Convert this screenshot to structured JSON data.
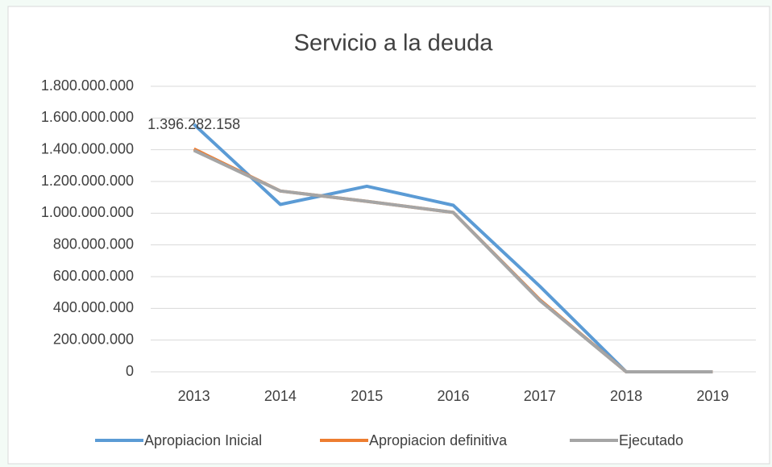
{
  "chart_data": {
    "type": "line",
    "title": "Servicio a la deuda",
    "categories": [
      "2013",
      "2014",
      "2015",
      "2016",
      "2017",
      "2018",
      "2019"
    ],
    "series": [
      {
        "name": "Apropiacion Inicial",
        "color": "#5b9bd5",
        "values": [
          1560000000,
          1055000000,
          1170000000,
          1050000000,
          540000000,
          0,
          0
        ]
      },
      {
        "name": "Apropiacion definitiva",
        "color": "#ed7d31",
        "values": [
          1405000000,
          1140000000,
          1075000000,
          1005000000,
          455000000,
          0,
          0
        ]
      },
      {
        "name": "Ejecutado",
        "color": "#a5a5a5",
        "values": [
          1396282158,
          1140000000,
          1075000000,
          1005000000,
          450000000,
          0,
          0
        ],
        "value_labels": [
          "1.396.282.158",
          null,
          null,
          null,
          null,
          null,
          null
        ]
      }
    ],
    "ylim": [
      0,
      1800000000
    ],
    "yticks": [
      0,
      {
        "value": 200000000,
        "label": "200.000.000"
      },
      {
        "value": 400000000,
        "label": "400.000.000"
      },
      {
        "value": 600000000,
        "label": "600.000.000"
      },
      {
        "value": 800000000,
        "label": "800.000.000"
      },
      {
        "value": 1000000000,
        "label": "1.000.000.000"
      },
      {
        "value": 1200000000,
        "label": "1.200.000.000"
      },
      {
        "value": 1400000000,
        "label": "1.400.000.000"
      },
      {
        "value": 1600000000,
        "label": "1.600.000.000"
      },
      {
        "value": 1800000000,
        "label": "1.800.000.000"
      }
    ],
    "grid": true,
    "legend": "bottom"
  }
}
